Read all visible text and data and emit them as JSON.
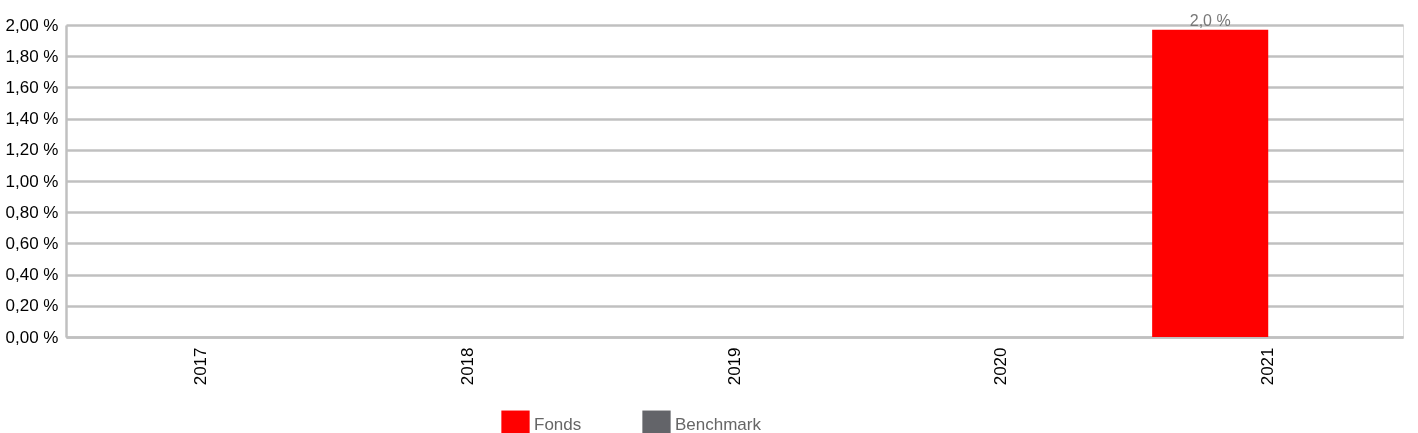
{
  "chart_data": {
    "type": "bar",
    "categories": [
      "2017",
      "2018",
      "2019",
      "2020",
      "2021"
    ],
    "series": [
      {
        "name": "Fonds",
        "color": "#ff0000",
        "values": [
          null,
          null,
          null,
          null,
          1.97
        ],
        "value_labels": [
          null,
          null,
          null,
          null,
          "2,0 %"
        ]
      },
      {
        "name": "Benchmark",
        "color": "#636469",
        "values": [
          null,
          null,
          null,
          null,
          null
        ]
      }
    ],
    "ylim": [
      0,
      2
    ],
    "yticks": [
      {
        "value": 0,
        "label": "0,00 %"
      },
      {
        "value": 0.2,
        "label": "0,20 %"
      },
      {
        "value": 0.4,
        "label": "0,40 %"
      },
      {
        "value": 0.6,
        "label": "0,60 %"
      },
      {
        "value": 0.8,
        "label": "0,80 %"
      },
      {
        "value": 1.0,
        "label": "1,00 %"
      },
      {
        "value": 1.2,
        "label": "1,20 %"
      },
      {
        "value": 1.4,
        "label": "1,40 %"
      },
      {
        "value": 1.6,
        "label": "1,60 %"
      },
      {
        "value": 1.8,
        "label": "1,80 %"
      },
      {
        "value": 2.0,
        "label": "2,00 %"
      }
    ],
    "grid": "y",
    "legend": "bottom"
  }
}
